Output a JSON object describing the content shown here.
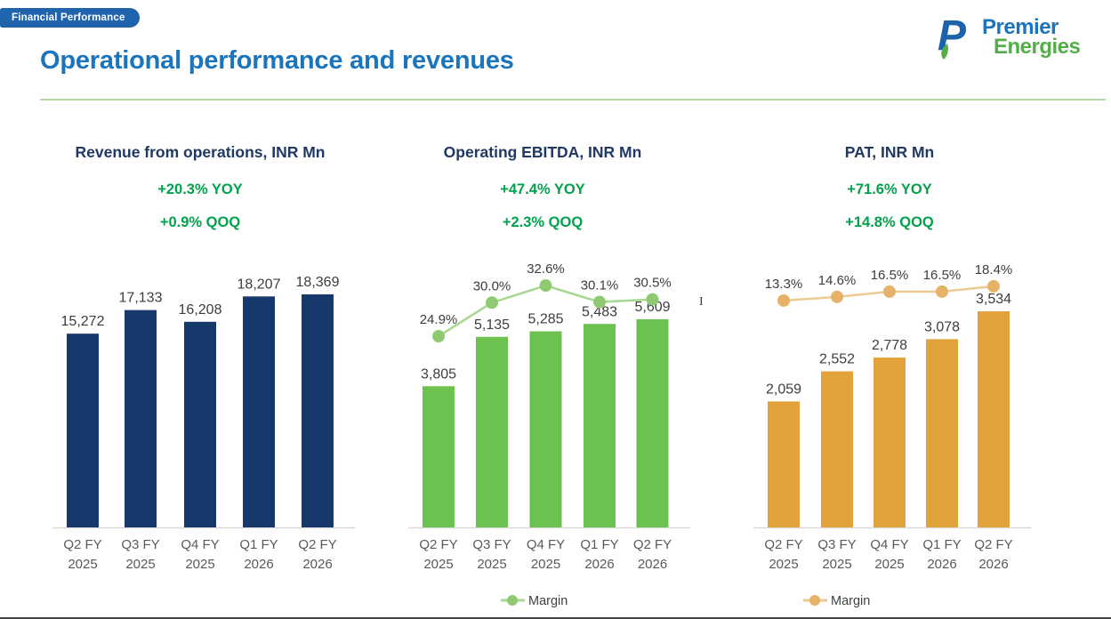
{
  "badge": {
    "label": "Financial Performance"
  },
  "logo": {
    "line1": "Premier",
    "line2": "Energies"
  },
  "page_title": "Operational performance and revenues",
  "artifact_text": "I",
  "colors": {
    "title_blue": "#1b75bc",
    "heading_navy": "#1f3864",
    "stat_green": "#00a24b",
    "revenue_bar": "#17386b",
    "ebitda_bar": "#6dc24f",
    "ebitda_line": "#a7d88f",
    "pat_bar": "#e2a33c",
    "pat_line": "#ecca92",
    "axis_gray": "#595959",
    "rule_green": "#b5d9a2",
    "badge_blue": "#1f64ad"
  },
  "chart_data": [
    {
      "type": "bar",
      "title": "Revenue from operations, INR Mn",
      "yoy": "+20.3% YOY",
      "qoq": "+0.9% QOQ",
      "categories": [
        "Q2 FY 2025",
        "Q3 FY 2025",
        "Q4 FY 2025",
        "Q1 FY 2026",
        "Q2 FY 2026"
      ],
      "bars": {
        "name": "Revenue",
        "values": [
          15272,
          17133,
          16208,
          18207,
          18369
        ],
        "labels": [
          "15,272",
          "17,133",
          "16,208",
          "18,207",
          "18,369"
        ],
        "color": "#17386b"
      },
      "margin_line": null,
      "legend": null,
      "ylim": [
        0,
        18369
      ],
      "grid": false,
      "data_labels": true,
      "y_axis_visible": false
    },
    {
      "type": "bar+line",
      "title": "Operating EBITDA, INR Mn",
      "yoy": "+47.4% YOY",
      "qoq": "+2.3% QOQ",
      "categories": [
        "Q2 FY 2025",
        "Q3 FY 2025",
        "Q4 FY 2025",
        "Q1 FY 2026",
        "Q2 FY 2026"
      ],
      "bars": {
        "name": "Operating EBITDA",
        "values": [
          3805,
          5135,
          5285,
          5483,
          5609
        ],
        "labels": [
          "3,805",
          "5,135",
          "5,285",
          "5,483",
          "5,609"
        ],
        "color": "#6dc24f"
      },
      "margin_line": {
        "name": "Margin",
        "values_pct": [
          24.9,
          30.0,
          32.6,
          30.1,
          30.5
        ],
        "labels": [
          "24.9%",
          "30.0%",
          "32.6%",
          "30.1%",
          "30.5%"
        ],
        "line_color": "#a7d88f",
        "marker_color": "#8fca72"
      },
      "legend": {
        "label": "Margin",
        "position": "bottom"
      },
      "ylim": [
        0,
        5609
      ],
      "grid": false,
      "data_labels": true,
      "y_axis_visible": false
    },
    {
      "type": "bar+line",
      "title": "PAT, INR Mn",
      "yoy": "+71.6% YOY",
      "qoq": "+14.8% QOQ",
      "categories": [
        "Q2 FY 2025",
        "Q3 FY 2025",
        "Q4 FY 2025",
        "Q1 FY 2026",
        "Q2 FY 2026"
      ],
      "bars": {
        "name": "PAT",
        "values": [
          2059,
          2552,
          2778,
          3078,
          3534
        ],
        "labels": [
          "2,059",
          "2,552",
          "2,778",
          "3,078",
          "3,534"
        ],
        "color": "#e2a33c"
      },
      "margin_line": {
        "name": "Margin",
        "values_pct": [
          13.3,
          14.6,
          16.5,
          16.5,
          18.4
        ],
        "labels": [
          "13.3%",
          "14.6%",
          "16.5%",
          "16.5%",
          "18.4%"
        ],
        "line_color": "#ecca92",
        "marker_color": "#e5b267"
      },
      "legend": {
        "label": "Margin",
        "position": "bottom"
      },
      "ylim": [
        0,
        3534
      ],
      "grid": false,
      "data_labels": true,
      "y_axis_visible": false
    }
  ]
}
